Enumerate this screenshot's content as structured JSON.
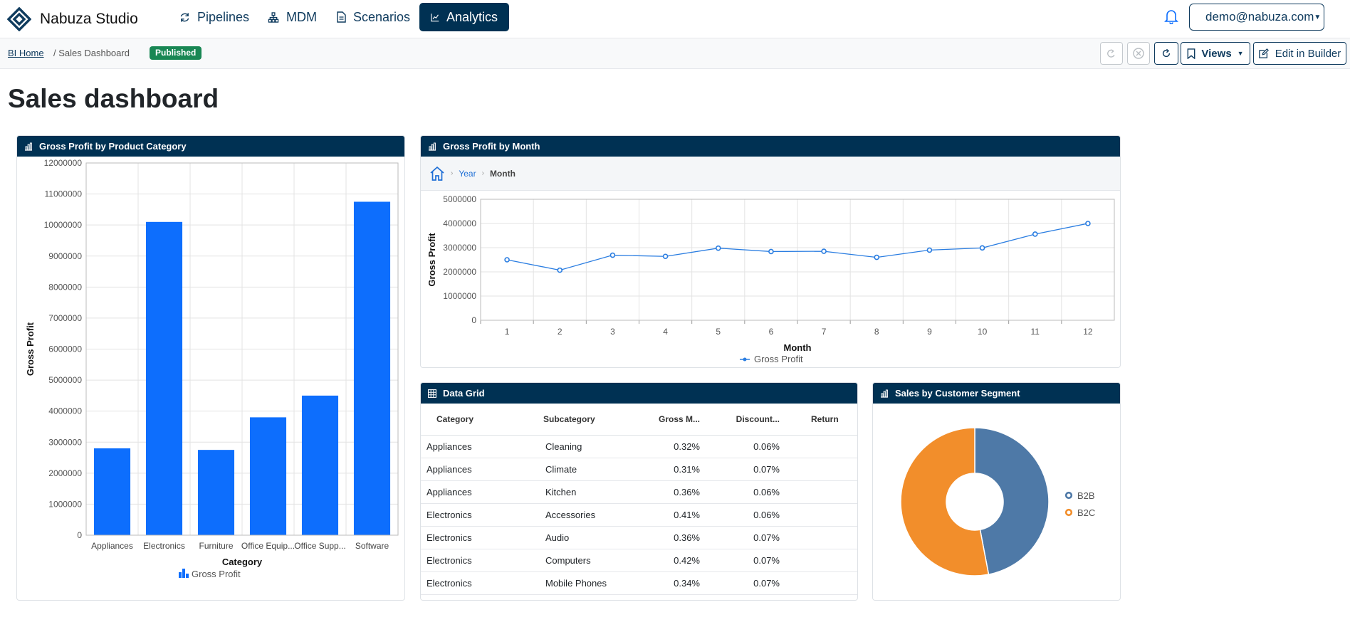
{
  "app": {
    "title": "Nabuza Studio"
  },
  "nav": {
    "items": [
      {
        "label": "Pipelines",
        "icon": "refresh-icon"
      },
      {
        "label": "MDM",
        "icon": "hierarchy-icon"
      },
      {
        "label": "Scenarios",
        "icon": "document-icon"
      },
      {
        "label": "Analytics",
        "icon": "line-chart-icon",
        "active": true
      }
    ],
    "user": "demo@nabuza.com"
  },
  "breadcrumb": {
    "home": "BI Home",
    "current": "/ Sales Dashboard"
  },
  "status_badge": "Published",
  "toolbar": {
    "views_label": "Views",
    "edit_label": "Edit in Builder"
  },
  "page_title": "Sales dashboard",
  "colors": {
    "primary": "#003153",
    "bar": "#0d6efd",
    "b2b": "#4e79a7",
    "b2c": "#f28e2b",
    "published": "#198754"
  },
  "cards": {
    "bar": {
      "title": "Gross Profit by Product Category"
    },
    "line": {
      "title": "Gross Profit by Month",
      "drill": [
        "Year",
        "Month"
      ]
    },
    "grid": {
      "title": "Data Grid"
    },
    "pie": {
      "title": "Sales by Customer Segment"
    }
  },
  "chart_data": [
    {
      "type": "bar",
      "title": "Gross Profit by Product Category",
      "xlabel": "Category",
      "ylabel": "Gross Profit",
      "categories": [
        "Appliances",
        "Electronics",
        "Furniture",
        "Office Equip...",
        "Office Supp...",
        "Software"
      ],
      "series": [
        {
          "name": "Gross Profit",
          "values": [
            2800000,
            10100000,
            2750000,
            3800000,
            4500000,
            10750000
          ]
        }
      ],
      "ylim": [
        0,
        12000000
      ],
      "yticks": [
        "0",
        "1000000",
        "2000000",
        "3000000",
        "4000000",
        "5000000",
        "6000000",
        "7000000",
        "8000000",
        "9000000",
        "10000000",
        "11000000",
        "12000000"
      ],
      "grid": true,
      "legend": "bottom"
    },
    {
      "type": "line",
      "title": "Gross Profit by Month",
      "xlabel": "Month",
      "ylabel": "Gross Profit",
      "x": [
        "1",
        "2",
        "3",
        "4",
        "5",
        "6",
        "7",
        "8",
        "9",
        "10",
        "11",
        "12"
      ],
      "series": [
        {
          "name": "Gross Profit",
          "values": [
            2500000,
            2070000,
            2690000,
            2640000,
            2980000,
            2840000,
            2850000,
            2600000,
            2900000,
            2990000,
            3560000,
            4000000
          ]
        }
      ],
      "ylim": [
        0,
        5000000
      ],
      "yticks": [
        "0",
        "1000000",
        "2000000",
        "3000000",
        "4000000",
        "5000000"
      ],
      "grid": true,
      "legend": "bottom"
    },
    {
      "type": "pie",
      "title": "Sales by Customer Segment",
      "labels": [
        "B2B",
        "B2C"
      ],
      "values": [
        47,
        53
      ],
      "donut": true,
      "legend": "right"
    }
  ],
  "grid": {
    "columns": [
      "Category",
      "Subcategory",
      "Gross M...",
      "Discount...",
      "Return"
    ],
    "rows": [
      [
        "Appliances",
        "Cleaning",
        "0.32%",
        "0.06%",
        ""
      ],
      [
        "Appliances",
        "Climate",
        "0.31%",
        "0.07%",
        ""
      ],
      [
        "Appliances",
        "Kitchen",
        "0.36%",
        "0.06%",
        ""
      ],
      [
        "Electronics",
        "Accessories",
        "0.41%",
        "0.06%",
        ""
      ],
      [
        "Electronics",
        "Audio",
        "0.36%",
        "0.07%",
        ""
      ],
      [
        "Electronics",
        "Computers",
        "0.42%",
        "0.07%",
        ""
      ],
      [
        "Electronics",
        "Mobile Phones",
        "0.34%",
        "0.07%",
        ""
      ]
    ]
  }
}
